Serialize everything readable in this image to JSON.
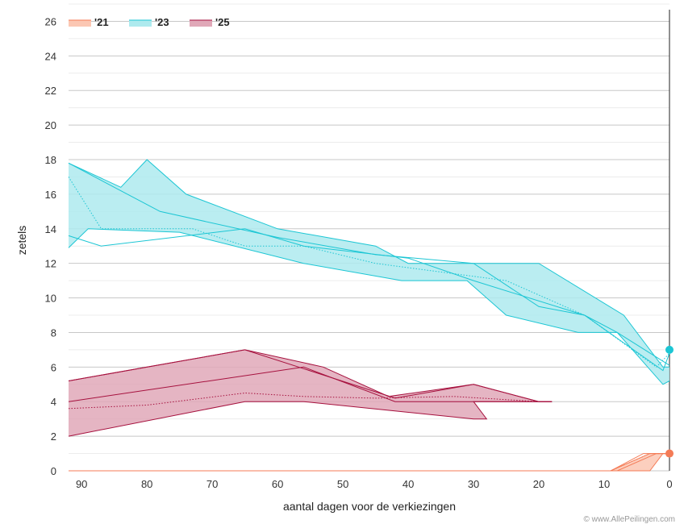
{
  "chart_data": {
    "type": "area",
    "xlabel": "aantal dagen voor de verkiezingen",
    "ylabel": "zetels",
    "xlim": [
      92,
      0
    ],
    "ylim": [
      0,
      27
    ],
    "x_ticks": [
      90,
      80,
      70,
      60,
      50,
      40,
      30,
      20,
      10,
      0
    ],
    "y_ticks": [
      0,
      2,
      4,
      6,
      8,
      10,
      12,
      14,
      16,
      18,
      20,
      22,
      24,
      26
    ],
    "grid": true,
    "legend_position": "top-left",
    "credit": "© www.AllePeilingen.com",
    "series": [
      {
        "name": "'21",
        "color": "#f47b56",
        "fill": "#fbc7b3",
        "band_upper": [
          [
            92,
            0
          ],
          [
            9,
            0
          ],
          [
            3,
            1
          ],
          [
            0,
            1
          ]
        ],
        "band_lower": [
          [
            92,
            0
          ],
          [
            9,
            0
          ],
          [
            3,
            0
          ],
          [
            1,
            1
          ],
          [
            0,
            1
          ]
        ],
        "line_a": [
          [
            92,
            0
          ],
          [
            9,
            0
          ],
          [
            4,
            1
          ],
          [
            0,
            1
          ]
        ],
        "line_b": [
          [
            92,
            0
          ],
          [
            8,
            0
          ],
          [
            2,
            1
          ],
          [
            0,
            1
          ]
        ],
        "dotted": [
          [
            92,
            0
          ],
          [
            9,
            0
          ],
          [
            3,
            1
          ],
          [
            0,
            1
          ]
        ],
        "end_value": 1
      },
      {
        "name": "'23",
        "color": "#1cc6d4",
        "fill": "#aeeaee",
        "band_upper": [
          [
            92,
            17.8
          ],
          [
            84,
            16.4
          ],
          [
            80,
            18
          ],
          [
            74,
            16
          ],
          [
            60,
            14
          ],
          [
            45,
            13
          ],
          [
            40,
            12
          ],
          [
            20,
            12
          ],
          [
            7,
            9
          ],
          [
            1,
            6
          ],
          [
            0,
            6
          ]
        ],
        "band_lower": [
          [
            92,
            12.9
          ],
          [
            89,
            14
          ],
          [
            75,
            13.8
          ],
          [
            56,
            12
          ],
          [
            41,
            11
          ],
          [
            31,
            11
          ],
          [
            25,
            9
          ],
          [
            14,
            8
          ],
          [
            8,
            8
          ],
          [
            1,
            5
          ],
          [
            0,
            5.2
          ]
        ],
        "line_a": [
          [
            92,
            13.6
          ],
          [
            87,
            13
          ],
          [
            65,
            14
          ],
          [
            56,
            13
          ],
          [
            40,
            12.3
          ],
          [
            30,
            11
          ],
          [
            13,
            9
          ],
          [
            8,
            8
          ],
          [
            0,
            6.1
          ]
        ],
        "line_b": [
          [
            92,
            17.8
          ],
          [
            78,
            15
          ],
          [
            60,
            13.5
          ],
          [
            45,
            12.5
          ],
          [
            30,
            12
          ],
          [
            20,
            9.5
          ],
          [
            13,
            9
          ],
          [
            1,
            5.8
          ],
          [
            0,
            6.8
          ]
        ],
        "dotted": [
          [
            92,
            17
          ],
          [
            87,
            14
          ],
          [
            73,
            14
          ],
          [
            65,
            13
          ],
          [
            56,
            13
          ],
          [
            45,
            12
          ],
          [
            25,
            11
          ],
          [
            13,
            9
          ],
          [
            2,
            6
          ],
          [
            0,
            6.8
          ]
        ],
        "end_value": 7
      },
      {
        "name": "'25",
        "color": "#a6113e",
        "fill": "#e0a8b8",
        "band_upper": [
          [
            92,
            5.2
          ],
          [
            80,
            6
          ],
          [
            65,
            7
          ],
          [
            53,
            6
          ],
          [
            43,
            4.3
          ],
          [
            30,
            5
          ],
          [
            20,
            4
          ],
          [
            18,
            4
          ]
        ],
        "band_lower": [
          [
            92,
            2
          ],
          [
            65,
            4
          ],
          [
            56,
            4
          ],
          [
            30,
            3
          ],
          [
            28,
            3
          ],
          [
            30,
            4
          ],
          [
            20,
            4
          ],
          [
            18,
            4
          ]
        ],
        "line_a": [
          [
            92,
            4
          ],
          [
            56,
            6
          ],
          [
            42,
            4
          ],
          [
            30,
            4
          ],
          [
            20,
            4
          ],
          [
            18,
            4
          ]
        ],
        "line_b": [
          [
            92,
            5.2
          ],
          [
            65,
            7
          ],
          [
            42,
            4.2
          ],
          [
            30,
            5
          ],
          [
            20,
            4
          ],
          [
            18,
            4
          ]
        ],
        "dotted": [
          [
            92,
            3.6
          ],
          [
            80,
            3.8
          ],
          [
            65,
            4.5
          ],
          [
            56,
            4.3
          ],
          [
            45,
            4.2
          ],
          [
            33,
            4.3
          ],
          [
            20,
            4
          ]
        ],
        "end_value": null
      }
    ]
  }
}
